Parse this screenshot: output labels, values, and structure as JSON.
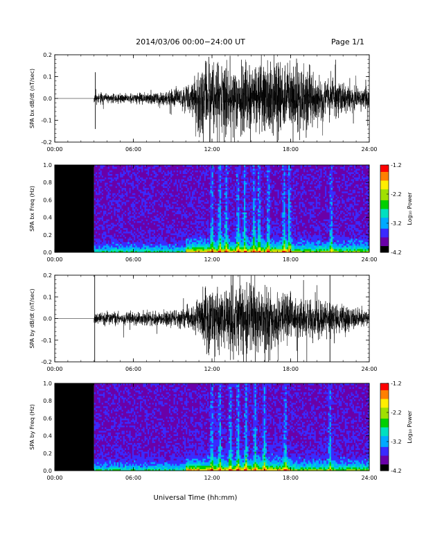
{
  "header": {
    "title": "2014/03/06  00:00−24:00 UT",
    "page": "Page 1/1"
  },
  "footer": {
    "xlabel": "Universal Time (hh:mm)"
  },
  "colors": {
    "trace": "#000000",
    "axes": "#000000",
    "background": "#ffffff",
    "colormap": [
      "#000000",
      "#6a00a8",
      "#3a2bff",
      "#00aaff",
      "#00e0c0",
      "#00d000",
      "#a0e000",
      "#ffee00",
      "#ff8000",
      "#ff0000"
    ]
  },
  "chart_data": [
    {
      "id": "panel1",
      "type": "line",
      "ylabel": "SPA bx dB/dt (nT/sec)",
      "xlim": [
        0,
        24
      ],
      "ylim": [
        -0.2,
        0.2
      ],
      "xticks": [
        "00:00",
        "06:00",
        "12:00",
        "18:00",
        "24:00"
      ],
      "yticks": [
        "-0.2",
        "-0.1",
        "0.0",
        "0.1",
        "0.2"
      ],
      "data_gap_end_hr": 3.0,
      "amplitude_envelope": {
        "hours": [
          3.0,
          4.0,
          6.0,
          8.0,
          9.5,
          10.5,
          11.0,
          12.0,
          13.0,
          14.0,
          15.0,
          16.0,
          17.0,
          18.0,
          19.0,
          20.0,
          21.0,
          22.0,
          23.0,
          24.0
        ],
        "amplitude": [
          0.025,
          0.025,
          0.028,
          0.035,
          0.05,
          0.1,
          0.2,
          0.2,
          0.2,
          0.2,
          0.2,
          0.2,
          0.2,
          0.2,
          0.18,
          0.12,
          0.1,
          0.08,
          0.06,
          0.06
        ]
      },
      "spikes": [
        {
          "hour": 3.1,
          "min": -0.14,
          "max": 0.12
        }
      ]
    },
    {
      "id": "panel2",
      "type": "heatmap",
      "ylabel": "SPA bx Freq (Hz)",
      "xlim": [
        0,
        24
      ],
      "ylim": [
        0,
        1.0
      ],
      "xticks": [
        "00:00",
        "06:00",
        "12:00",
        "18:00",
        "24:00"
      ],
      "yticks": [
        "0.0",
        "0.2",
        "0.4",
        "0.6",
        "0.8",
        "1.0"
      ],
      "data_gap_end_hr": 3.0,
      "colorbar": {
        "label": "Log₁₀ Power",
        "range": [
          -4.2,
          -1.2
        ],
        "ticks": [
          "-1.2",
          "-2.2",
          "-3.2",
          "-4.2"
        ]
      },
      "bright_bands_hr": [
        12.0,
        12.6,
        13.1,
        14.0,
        14.5,
        15.2,
        15.6,
        16.3,
        17.5,
        17.9,
        21.1
      ]
    },
    {
      "id": "panel3",
      "type": "line",
      "ylabel": "SPA by dB/dt (nT/sec)",
      "xlim": [
        0,
        24
      ],
      "ylim": [
        -0.2,
        0.2
      ],
      "xticks": [
        "00:00",
        "06:00",
        "12:00",
        "18:00",
        "24:00"
      ],
      "yticks": [
        "-0.2",
        "-0.1",
        "0.0",
        "0.1",
        "0.2"
      ],
      "data_gap_end_hr": 3.0,
      "amplitude_envelope": {
        "hours": [
          3.0,
          4.0,
          6.0,
          8.0,
          9.5,
          10.5,
          11.0,
          12.0,
          13.0,
          14.0,
          15.0,
          16.0,
          17.0,
          18.0,
          19.0,
          20.0,
          21.0,
          22.0,
          23.0,
          24.0
        ],
        "amplitude": [
          0.03,
          0.035,
          0.035,
          0.04,
          0.05,
          0.08,
          0.12,
          0.18,
          0.2,
          0.2,
          0.2,
          0.17,
          0.14,
          0.12,
          0.1,
          0.09,
          0.09,
          0.07,
          0.05,
          0.05
        ]
      },
      "spikes": [
        {
          "hour": 3.05,
          "min": -0.2,
          "max": 0.2
        },
        {
          "hour": 21.0,
          "min": -0.2,
          "max": 0.2
        }
      ]
    },
    {
      "id": "panel4",
      "type": "heatmap",
      "ylabel": "SPA by Freq (Hz)",
      "xlim": [
        0,
        24
      ],
      "ylim": [
        0,
        1.0
      ],
      "xticks": [
        "00:00",
        "06:00",
        "12:00",
        "18:00",
        "24:00"
      ],
      "yticks": [
        "0.0",
        "0.2",
        "0.4",
        "0.6",
        "0.8",
        "1.0"
      ],
      "data_gap_end_hr": 3.0,
      "colorbar": {
        "label": "Log₁₀ Power",
        "range": [
          -4.2,
          -1.2
        ],
        "ticks": [
          "-1.2",
          "-2.2",
          "-3.2",
          "-4.2"
        ]
      },
      "bright_bands_hr": [
        12.0,
        12.6,
        13.4,
        14.0,
        14.6,
        15.3,
        16.0,
        17.6,
        21.0
      ]
    }
  ]
}
